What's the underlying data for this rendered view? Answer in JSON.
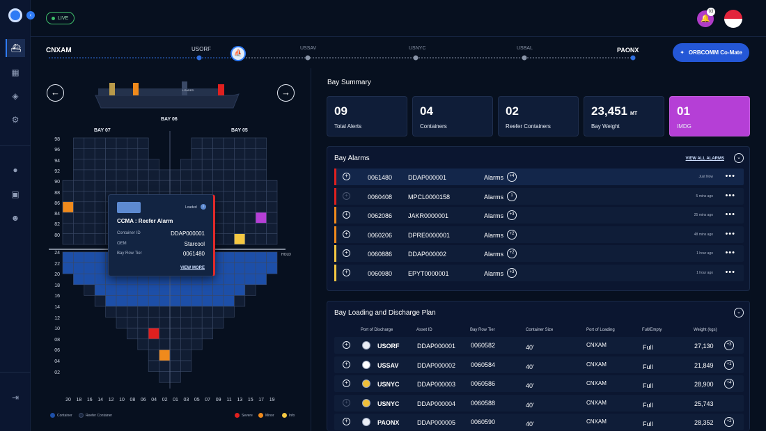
{
  "header": {
    "live_label": "LIVE",
    "notification_count": "03"
  },
  "route": {
    "origin": "CNXAM",
    "destination": "PAONX",
    "stops": [
      {
        "code": "USORF",
        "state": "passed"
      },
      {
        "code": "USSAV",
        "state": "upcoming"
      },
      {
        "code": "USNYC",
        "state": "upcoming"
      },
      {
        "code": "USBAL",
        "state": "upcoming"
      }
    ]
  },
  "comate_label": "ORBCOMM Co-Mate",
  "bay_view": {
    "left_bay": "BAY 07",
    "center_bay": "BAY 06",
    "right_bay": "BAY 05",
    "hold_label": "HOLD",
    "deck_rows": [
      "98",
      "96",
      "94",
      "92",
      "90",
      "88",
      "86",
      "84",
      "82",
      "80"
    ],
    "hold_rows": [
      "24",
      "22",
      "20",
      "18",
      "16",
      "14",
      "12",
      "10",
      "08",
      "06",
      "04",
      "02"
    ],
    "columns": [
      "20",
      "18",
      "16",
      "14",
      "12",
      "10",
      "08",
      "06",
      "04",
      "02",
      "01",
      "03",
      "05",
      "07",
      "09",
      "11",
      "13",
      "15",
      "17",
      "19"
    ],
    "legend": [
      {
        "label": "Container",
        "color": "#1d4fa8"
      },
      {
        "label": "Reefer Container",
        "color": "#1a2740"
      },
      {
        "label": "Severe",
        "color": "#e0201f"
      },
      {
        "label": "Minor",
        "color": "#f08a1c"
      },
      {
        "label": "Info",
        "color": "#f5c842"
      }
    ]
  },
  "popup": {
    "status": "Loaded",
    "title": "CCMA : Reefer Alarm",
    "fields": [
      {
        "key": "Container ID",
        "value": "DDAP000001"
      },
      {
        "key": "OEM",
        "value": "Starcool"
      },
      {
        "key": "Bay Row Tier",
        "value": "0061480"
      }
    ],
    "view_more": "VIEW MORE"
  },
  "bay_summary": {
    "title": "Bay Summary",
    "cards": [
      {
        "value": "09",
        "unit": "",
        "label": "Total Alerts"
      },
      {
        "value": "04",
        "unit": "",
        "label": "Containers"
      },
      {
        "value": "02",
        "unit": "",
        "label": "Reefer Containers"
      },
      {
        "value": "23,451",
        "unit": "MT",
        "label": "Bay Weight"
      },
      {
        "value": "01",
        "unit": "",
        "label": "IMDG"
      }
    ]
  },
  "bay_alarms": {
    "title": "Bay Alarms",
    "view_all": "VIEW ALL ALARMS",
    "rows": [
      {
        "brt": "0061480",
        "asset": "DDAP000001",
        "label": "Alarms",
        "count": "+4",
        "time": "Just Now",
        "severity_color": "#e0201f"
      },
      {
        "brt": "0060408",
        "asset": "MPCL0000158",
        "label": "Alarms",
        "count": "1",
        "time": "5 mins ago",
        "severity_color": "#e0201f"
      },
      {
        "brt": "0062086",
        "asset": "JAKR0000001",
        "label": "Alarms",
        "count": "+3",
        "time": "25 mins ago",
        "severity_color": "#f08a1c"
      },
      {
        "brt": "0060206",
        "asset": "DPRE0000001",
        "label": "Alarms",
        "count": "+2",
        "time": "48 mins ago",
        "severity_color": "#f08a1c"
      },
      {
        "brt": "0060886",
        "asset": "DDAP000002",
        "label": "Alarms",
        "count": "+2",
        "time": "1 hour ago",
        "severity_color": "#f5c842"
      },
      {
        "brt": "0060980",
        "asset": "EPYT0000001",
        "label": "Alarms",
        "count": "+3",
        "time": "1 hour ago",
        "severity_color": "#f5c842"
      }
    ]
  },
  "plan": {
    "title": "Bay Loading and Discharge Plan",
    "headers": [
      "Port of Discharge",
      "Asset ID",
      "Bay Row Tier",
      "Container Size",
      "Port of Loading",
      "Full/Empty",
      "Weight (kgs)"
    ],
    "rows": [
      {
        "pod": "USORF",
        "asset": "DDAP000001",
        "brt": "0060582",
        "size": "40'",
        "pol": "CNXAM",
        "fe": "Full",
        "weight": "27,130",
        "count": "+3"
      },
      {
        "pod": "USSAV",
        "asset": "DDAP000002",
        "brt": "0060584",
        "size": "40'",
        "pol": "CNXAM",
        "fe": "Full",
        "weight": "21,849",
        "count": "+1"
      },
      {
        "pod": "USNYC",
        "asset": "DDAP000003",
        "brt": "0060586",
        "size": "40'",
        "pol": "CNXAM",
        "fe": "Full",
        "weight": "28,900",
        "count": "+4"
      },
      {
        "pod": "USNYC",
        "asset": "DDAP000004",
        "brt": "0060588",
        "size": "40'",
        "pol": "CNXAM",
        "fe": "Full",
        "weight": "25,743",
        "count": ""
      },
      {
        "pod": "PAONX",
        "asset": "DDAP000005",
        "brt": "0060590",
        "size": "40'",
        "pol": "CNXAM",
        "fe": "Full",
        "weight": "28,352",
        "count": "+2"
      }
    ]
  }
}
